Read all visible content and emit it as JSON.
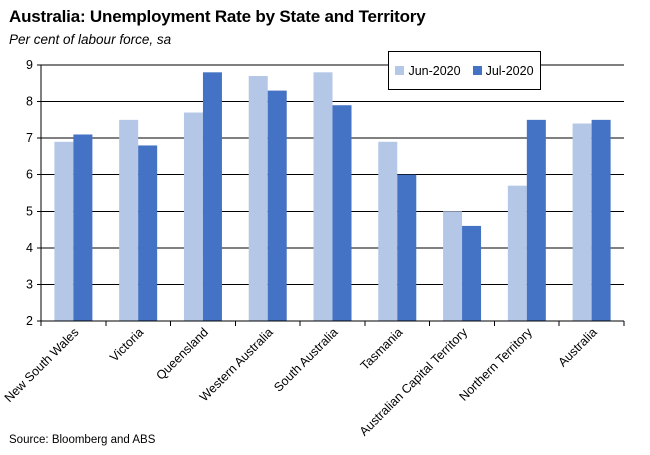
{
  "title": "Australia: Unemployment Rate by State and Territory",
  "subtitle": "Per cent of labour force, sa",
  "source": "Source: Bloomberg and ABS",
  "colors": {
    "jun": "#b4c7e7",
    "jul": "#4472c4",
    "grid": "#000000"
  },
  "chart_data": {
    "type": "bar",
    "title": "Australia: Unemployment Rate by State and Territory",
    "subtitle": "Per cent of labour force, sa",
    "xlabel": "",
    "ylabel": "",
    "ylim": [
      2,
      9
    ],
    "yticks": [
      2,
      3,
      4,
      5,
      6,
      7,
      8,
      9
    ],
    "grid": true,
    "legend_position": "top-right",
    "categories": [
      "New South Wales",
      "Victoria",
      "Queensland",
      "Western Australia",
      "South Australia",
      "Tasmania",
      "Australian Capital Territory",
      "Northern Territory",
      "Australia"
    ],
    "series": [
      {
        "name": "Jun-2020",
        "values": [
          6.9,
          7.5,
          7.7,
          8.7,
          8.8,
          6.9,
          5.0,
          5.7,
          7.4
        ]
      },
      {
        "name": "Jul-2020",
        "values": [
          7.1,
          6.8,
          8.8,
          8.3,
          7.9,
          6.0,
          4.6,
          7.5,
          7.5
        ]
      }
    ]
  }
}
